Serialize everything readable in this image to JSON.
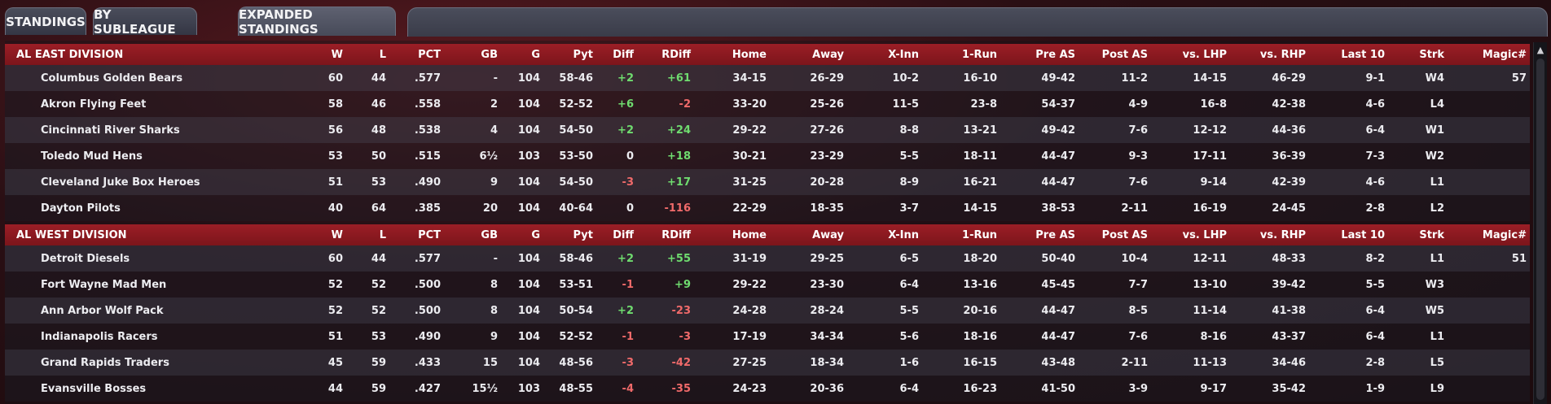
{
  "tabs": [
    "STANDINGS",
    "BY SUBLEAGUE",
    "EXPANDED STANDINGS"
  ],
  "active_tab": 2,
  "columns": [
    "W",
    "L",
    "PCT",
    "GB",
    "G",
    "Pyt",
    "Diff",
    "RDiff",
    "Home",
    "Away",
    "X-Inn",
    "1-Run",
    "Pre AS",
    "Post AS",
    "vs. LHP",
    "vs. RHP",
    "Last 10",
    "Strk",
    "Magic#"
  ],
  "divisions": [
    {
      "name": "AL EAST DIVISION",
      "teams": [
        {
          "team": "Columbus Golden Bears",
          "cells": [
            "60",
            "44",
            ".577",
            "-",
            "104",
            "58-46",
            "+2",
            "+61",
            "34-15",
            "26-29",
            "10-2",
            "16-10",
            "49-42",
            "11-2",
            "14-15",
            "46-29",
            "9-1",
            "W4",
            "57"
          ]
        },
        {
          "team": "Akron  Flying Feet",
          "cells": [
            "58",
            "46",
            ".558",
            "2",
            "104",
            "52-52",
            "+6",
            "-2",
            "33-20",
            "25-26",
            "11-5",
            "23-8",
            "54-37",
            "4-9",
            "16-8",
            "42-38",
            "4-6",
            "L4",
            ""
          ]
        },
        {
          "team": "Cincinnati River Sharks",
          "cells": [
            "56",
            "48",
            ".538",
            "4",
            "104",
            "54-50",
            "+2",
            "+24",
            "29-22",
            "27-26",
            "8-8",
            "13-21",
            "49-42",
            "7-6",
            "12-12",
            "44-36",
            "6-4",
            "W1",
            ""
          ]
        },
        {
          "team": "Toledo  Mud Hens",
          "cells": [
            "53",
            "50",
            ".515",
            "6½",
            "103",
            "53-50",
            "0",
            "+18",
            "30-21",
            "23-29",
            "5-5",
            "18-11",
            "44-47",
            "9-3",
            "17-11",
            "36-39",
            "7-3",
            "W2",
            ""
          ]
        },
        {
          "team": "Cleveland Juke Box Heroes",
          "cells": [
            "51",
            "53",
            ".490",
            "9",
            "104",
            "54-50",
            "-3",
            "+17",
            "31-25",
            "20-28",
            "8-9",
            "16-21",
            "44-47",
            "7-6",
            "9-14",
            "42-39",
            "4-6",
            "L1",
            ""
          ]
        },
        {
          "team": "Dayton Pilots",
          "cells": [
            "40",
            "64",
            ".385",
            "20",
            "104",
            "40-64",
            "0",
            "-116",
            "22-29",
            "18-35",
            "3-7",
            "14-15",
            "38-53",
            "2-11",
            "16-19",
            "24-45",
            "2-8",
            "L2",
            ""
          ]
        }
      ]
    },
    {
      "name": "AL WEST DIVISION",
      "teams": [
        {
          "team": "Detroit Diesels",
          "cells": [
            "60",
            "44",
            ".577",
            "-",
            "104",
            "58-46",
            "+2",
            "+55",
            "31-19",
            "29-25",
            "6-5",
            "18-20",
            "50-40",
            "10-4",
            "12-11",
            "48-33",
            "8-2",
            "L1",
            "51"
          ]
        },
        {
          "team": "Fort Wayne Mad Men",
          "cells": [
            "52",
            "52",
            ".500",
            "8",
            "104",
            "53-51",
            "-1",
            "+9",
            "29-22",
            "23-30",
            "6-4",
            "13-16",
            "45-45",
            "7-7",
            "13-10",
            "39-42",
            "5-5",
            "W3",
            ""
          ]
        },
        {
          "team": "Ann Arbor Wolf Pack",
          "cells": [
            "52",
            "52",
            ".500",
            "8",
            "104",
            "50-54",
            "+2",
            "-23",
            "24-28",
            "28-24",
            "5-5",
            "20-16",
            "44-47",
            "8-5",
            "11-14",
            "41-38",
            "6-4",
            "W5",
            ""
          ]
        },
        {
          "team": "Indianapolis Racers",
          "cells": [
            "51",
            "53",
            ".490",
            "9",
            "104",
            "52-52",
            "-1",
            "-3",
            "17-19",
            "34-34",
            "5-6",
            "18-16",
            "44-47",
            "7-6",
            "8-16",
            "43-37",
            "6-4",
            "L1",
            ""
          ]
        },
        {
          "team": "Grand Rapids Traders",
          "cells": [
            "45",
            "59",
            ".433",
            "15",
            "104",
            "48-56",
            "-3",
            "-42",
            "27-25",
            "18-34",
            "1-6",
            "16-15",
            "43-48",
            "2-11",
            "11-13",
            "34-46",
            "2-8",
            "L5",
            ""
          ]
        },
        {
          "team": "Evansville Bosses",
          "cells": [
            "44",
            "59",
            ".427",
            "15½",
            "103",
            "48-55",
            "-4",
            "-35",
            "24-23",
            "20-36",
            "6-4",
            "16-23",
            "41-50",
            "3-9",
            "9-17",
            "35-42",
            "1-9",
            "L9",
            ""
          ]
        }
      ]
    }
  ]
}
